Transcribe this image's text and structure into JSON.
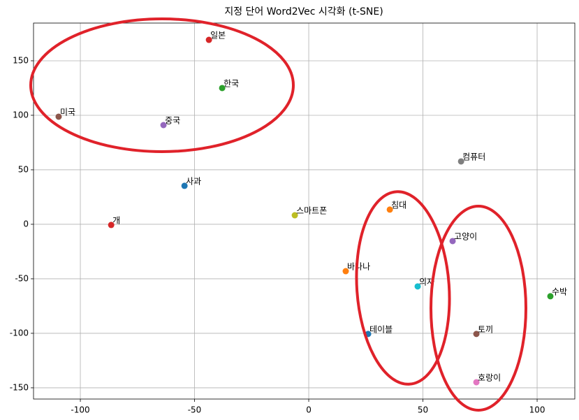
{
  "chart_data": {
    "type": "scatter",
    "title": "지정 단어 Word2Vec 시각화 (t-SNE)",
    "labels": [
      "사과",
      "바나나",
      "수박",
      "개",
      "고양이",
      "토끼",
      "호랑이",
      "컴퓨터",
      "스마트폰",
      "의자",
      "테이블",
      "침대",
      "한국",
      "일본",
      "중국",
      "미국"
    ],
    "x": [
      -54.4,
      16.2,
      105.8,
      -86.5,
      63,
      73.4,
      73.4,
      66.7,
      -6.1,
      47.7,
      26,
      35.5,
      -37.9,
      -43.7,
      -63.6,
      -109.5
    ],
    "y": [
      35.3,
      -43,
      -66,
      -0.6,
      -15.4,
      -100.6,
      -144.9,
      57.7,
      8.3,
      -57,
      -100.6,
      13.5,
      125,
      169.2,
      91,
      98.7
    ],
    "colors": [
      "#1f77b4",
      "#ff7f0e",
      "#2ca02c",
      "#d62728",
      "#9467bd",
      "#8c564b",
      "#e377c2",
      "#7f7f7f",
      "#bcbd22",
      "#17becf",
      "#1f77b4",
      "#ff7f0e",
      "#2ca02c",
      "#d62728",
      "#9467bd",
      "#8c564b"
    ],
    "xlim": [
      -120.5,
      116.5
    ],
    "ylim": [
      -160.3,
      184.6
    ],
    "xticks": [
      -100,
      -50,
      0,
      50,
      100
    ],
    "yticks": [
      -150,
      -100,
      -50,
      0,
      50,
      100,
      150
    ],
    "grid": true
  }
}
